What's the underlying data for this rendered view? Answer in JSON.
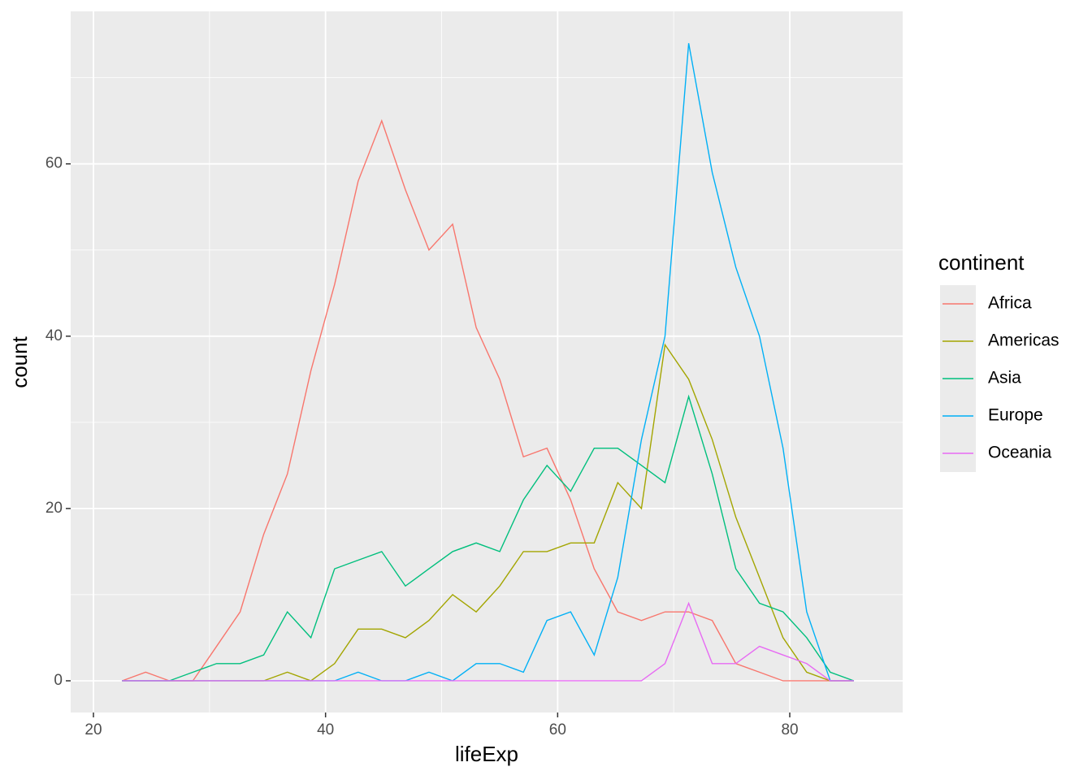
{
  "chart_data": {
    "type": "line",
    "x_label": "lifeExp",
    "y_label": "count",
    "legend_title": "continent",
    "legend_position": "right",
    "grid": true,
    "x": [
      22.47,
      24.5,
      26.54,
      28.57,
      30.61,
      32.64,
      34.67,
      36.71,
      38.74,
      40.78,
      42.81,
      44.84,
      46.88,
      48.91,
      50.95,
      52.98,
      55.01,
      57.05,
      59.08,
      61.12,
      63.15,
      65.18,
      67.22,
      69.25,
      71.29,
      73.32,
      75.35,
      77.39,
      79.42,
      81.46,
      83.49,
      85.52
    ],
    "xlim": [
      18.04,
      89.73
    ],
    "ylim": [
      -3.68,
      77.7
    ],
    "xticks": [
      20,
      40,
      60,
      80
    ],
    "yticks": [
      0,
      20,
      40,
      60
    ],
    "series": [
      {
        "name": "Africa",
        "color": "#F8766D",
        "values": [
          0,
          1,
          0,
          0,
          4,
          8,
          17,
          24,
          36,
          46,
          58,
          65,
          57,
          50,
          53,
          41,
          35,
          26,
          27,
          21,
          13,
          8,
          7,
          8,
          8,
          7,
          2,
          1,
          0,
          0,
          0,
          0
        ]
      },
      {
        "name": "Americas",
        "color": "#A3A500",
        "values": [
          0,
          0,
          0,
          0,
          0,
          0,
          0,
          1,
          0,
          2,
          6,
          6,
          5,
          7,
          10,
          8,
          11,
          15,
          15,
          16,
          16,
          23,
          20,
          39,
          35,
          28,
          19,
          12,
          5,
          1,
          0,
          0
        ]
      },
      {
        "name": "Asia",
        "color": "#00BF7D",
        "values": [
          0,
          0,
          0,
          1,
          2,
          2,
          3,
          8,
          5,
          13,
          14,
          15,
          11,
          13,
          15,
          16,
          15,
          21,
          25,
          22,
          27,
          27,
          25,
          23,
          33,
          24,
          13,
          9,
          8,
          5,
          1,
          0
        ]
      },
      {
        "name": "Europe",
        "color": "#00B0F6",
        "values": [
          0,
          0,
          0,
          0,
          0,
          0,
          0,
          0,
          0,
          0,
          1,
          0,
          0,
          1,
          0,
          2,
          2,
          1,
          7,
          8,
          3,
          12,
          28,
          40,
          74,
          59,
          48,
          40,
          27,
          8,
          0,
          0
        ]
      },
      {
        "name": "Oceania",
        "color": "#E76BF3",
        "values": [
          0,
          0,
          0,
          0,
          0,
          0,
          0,
          0,
          0,
          0,
          0,
          0,
          0,
          0,
          0,
          0,
          0,
          0,
          0,
          0,
          0,
          0,
          0,
          2,
          9,
          2,
          2,
          4,
          3,
          2,
          0,
          0
        ]
      }
    ]
  }
}
